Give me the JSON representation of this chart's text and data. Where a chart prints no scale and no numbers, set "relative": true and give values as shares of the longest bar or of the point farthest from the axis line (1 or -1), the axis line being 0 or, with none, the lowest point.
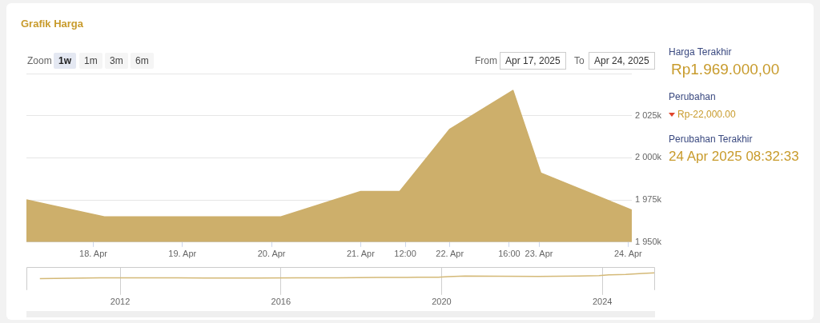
{
  "chart_data": [
    {
      "type": "area",
      "title": "Grafik Harga",
      "x": [
        "2025-04-17T06:00",
        "2025-04-18T03:00",
        "2025-04-19T02:00",
        "2025-04-20T02:30",
        "2025-04-21T00:00",
        "2025-04-21T10:30",
        "2025-04-22T00:00",
        "2025-04-22T17:00",
        "2025-04-23T00:30",
        "2025-04-24T01:00"
      ],
      "series": [
        {
          "color": "#cdaf6b",
          "values": [
            1975000,
            1965000,
            1965000,
            1965000,
            1980000,
            1980000,
            2017000,
            2040000,
            1991000,
            1969000
          ]
        }
      ],
      "xlim": [
        "2025-04-17T06:00",
        "2025-04-24T01:00"
      ],
      "xticks": [
        {
          "value": "2025-04-18",
          "label": "18. Apr"
        },
        {
          "value": "2025-04-19",
          "label": "19. Apr"
        },
        {
          "value": "2025-04-20",
          "label": "20. Apr"
        },
        {
          "value": "2025-04-21",
          "label": "21. Apr"
        },
        {
          "value": "2025-04-21T12:00",
          "label": "12:00"
        },
        {
          "value": "2025-04-22",
          "label": "22. Apr"
        },
        {
          "value": "2025-04-22T16:00",
          "label": "16:00"
        },
        {
          "value": "2025-04-23",
          "label": "23. Apr"
        },
        {
          "value": "2025-04-24",
          "label": "24. Apr"
        }
      ],
      "ylim": [
        1950000,
        2050000
      ],
      "yticks": [
        {
          "value": 1950000,
          "label": "1 950k"
        },
        {
          "value": 1975000,
          "label": "1 975k"
        },
        {
          "value": 2000000,
          "label": "2 000k"
        },
        {
          "value": 2025000,
          "label": "2 025k"
        },
        {
          "value": 2050000,
          "label": null
        }
      ],
      "grid": "y",
      "legend": false,
      "marker": "none",
      "line_style": "solid",
      "annotations": [
        "Zoom",
        "1w",
        "1m",
        "3m",
        "6m",
        "From",
        "Apr 17, 2025",
        "To",
        "Apr 24, 2025",
        "Harga Terakhir",
        "Rp1.969.000,00",
        "Perubahan",
        "Rp-22,000.00",
        "Perubahan Terakhir",
        "24 Apr 2025 08:32:33"
      ]
    },
    {
      "type": "line",
      "relative": true,
      "x": [
        "2010-01",
        "2011-07",
        "2012-06",
        "2013-06",
        "2014-06",
        "2015-06",
        "2016-06",
        "2017-06",
        "2018-06",
        "2019-06",
        "2019-12",
        "2020-03",
        "2020-08",
        "2021-06",
        "2022-06",
        "2023-06",
        "2023-12",
        "2024-03",
        "2024-08",
        "2025-01",
        "2025-04-24"
      ],
      "series": [
        {
          "color": "#d4b977",
          "values": [
            0,
            0.12,
            0.12,
            0.12,
            0.08,
            0.1,
            0.12,
            0.14,
            0.18,
            0.22,
            0.24,
            0.35,
            0.43,
            0.39,
            0.37,
            0.45,
            0.51,
            0.65,
            0.71,
            0.88,
            1
          ]
        }
      ],
      "xlim": [
        "2009-09",
        "2025-04-24"
      ],
      "xticks": [
        {
          "value": "2012",
          "label": "2012"
        },
        {
          "value": "2016",
          "label": "2016"
        },
        {
          "value": "2020",
          "label": "2020"
        },
        {
          "value": "2024",
          "label": "2024"
        }
      ],
      "grid": "x",
      "legend": false,
      "marker": "none",
      "line_style": "solid"
    }
  ]
}
